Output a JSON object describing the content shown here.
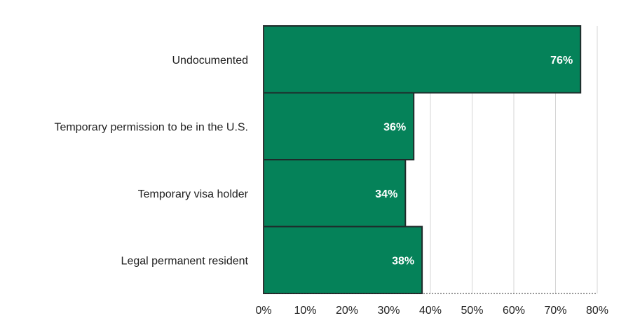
{
  "chart_data": {
    "type": "bar",
    "orientation": "horizontal",
    "categories": [
      "Undocumented",
      "Temporary permission to be in the U.S.",
      "Temporary visa holder",
      "Legal permanent resident"
    ],
    "values": [
      76,
      36,
      34,
      38
    ],
    "data_labels": [
      "76%",
      "36%",
      "34%",
      "38%"
    ],
    "xlim": [
      0,
      80
    ],
    "x_ticks": [
      0,
      10,
      20,
      30,
      40,
      50,
      60,
      70,
      80
    ],
    "x_tick_labels": [
      "0%",
      "10%",
      "20%",
      "30%",
      "40%",
      "50%",
      "60%",
      "70%",
      "80%"
    ],
    "title": "",
    "xlabel": "",
    "ylabel": "",
    "grid": "vertical",
    "legend": "none",
    "colors": {
      "bar_fill": "#058259",
      "bar_stroke": "#1f2a2a",
      "gridline": "#d4d4d4",
      "axis": "#333333",
      "text": "#222222",
      "data_label": "#ffffff"
    }
  }
}
